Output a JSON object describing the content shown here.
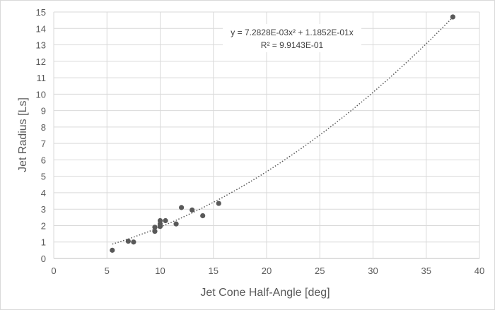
{
  "chart_data": {
    "type": "scatter",
    "xlabel": "Jet Cone Half-Angle [deg]",
    "ylabel": "Jet Radius [Ls]",
    "xlim": [
      0,
      40
    ],
    "ylim": [
      0,
      15
    ],
    "x_ticks": [
      0,
      5,
      10,
      15,
      20,
      25,
      30,
      35,
      40
    ],
    "y_ticks": [
      0,
      1,
      2,
      3,
      4,
      5,
      6,
      7,
      8,
      9,
      10,
      11,
      12,
      13,
      14,
      15
    ],
    "grid": true,
    "marker_color": "#595959",
    "trendline_color": "#595959",
    "series": [
      {
        "points": [
          [
            5.5,
            0.5
          ],
          [
            7.0,
            1.05
          ],
          [
            7.5,
            1.0
          ],
          [
            9.5,
            1.65
          ],
          [
            9.5,
            1.9
          ],
          [
            10.0,
            1.95
          ],
          [
            10.0,
            2.1
          ],
          [
            10.0,
            2.3
          ],
          [
            10.5,
            2.3
          ],
          [
            11.5,
            2.1
          ],
          [
            12.0,
            3.1
          ],
          [
            13.0,
            2.95
          ],
          [
            14.0,
            2.6
          ],
          [
            15.5,
            3.35
          ],
          [
            37.5,
            14.7
          ]
        ]
      }
    ],
    "trendline": {
      "type": "polynomial",
      "a2": 0.0072828,
      "a1": 0.11852,
      "x_range": [
        5.5,
        37.5
      ],
      "equation": "y = 7.2828E-03x² + 1.1852E-01x",
      "r_squared": "R² = 9.9143E-01"
    }
  }
}
